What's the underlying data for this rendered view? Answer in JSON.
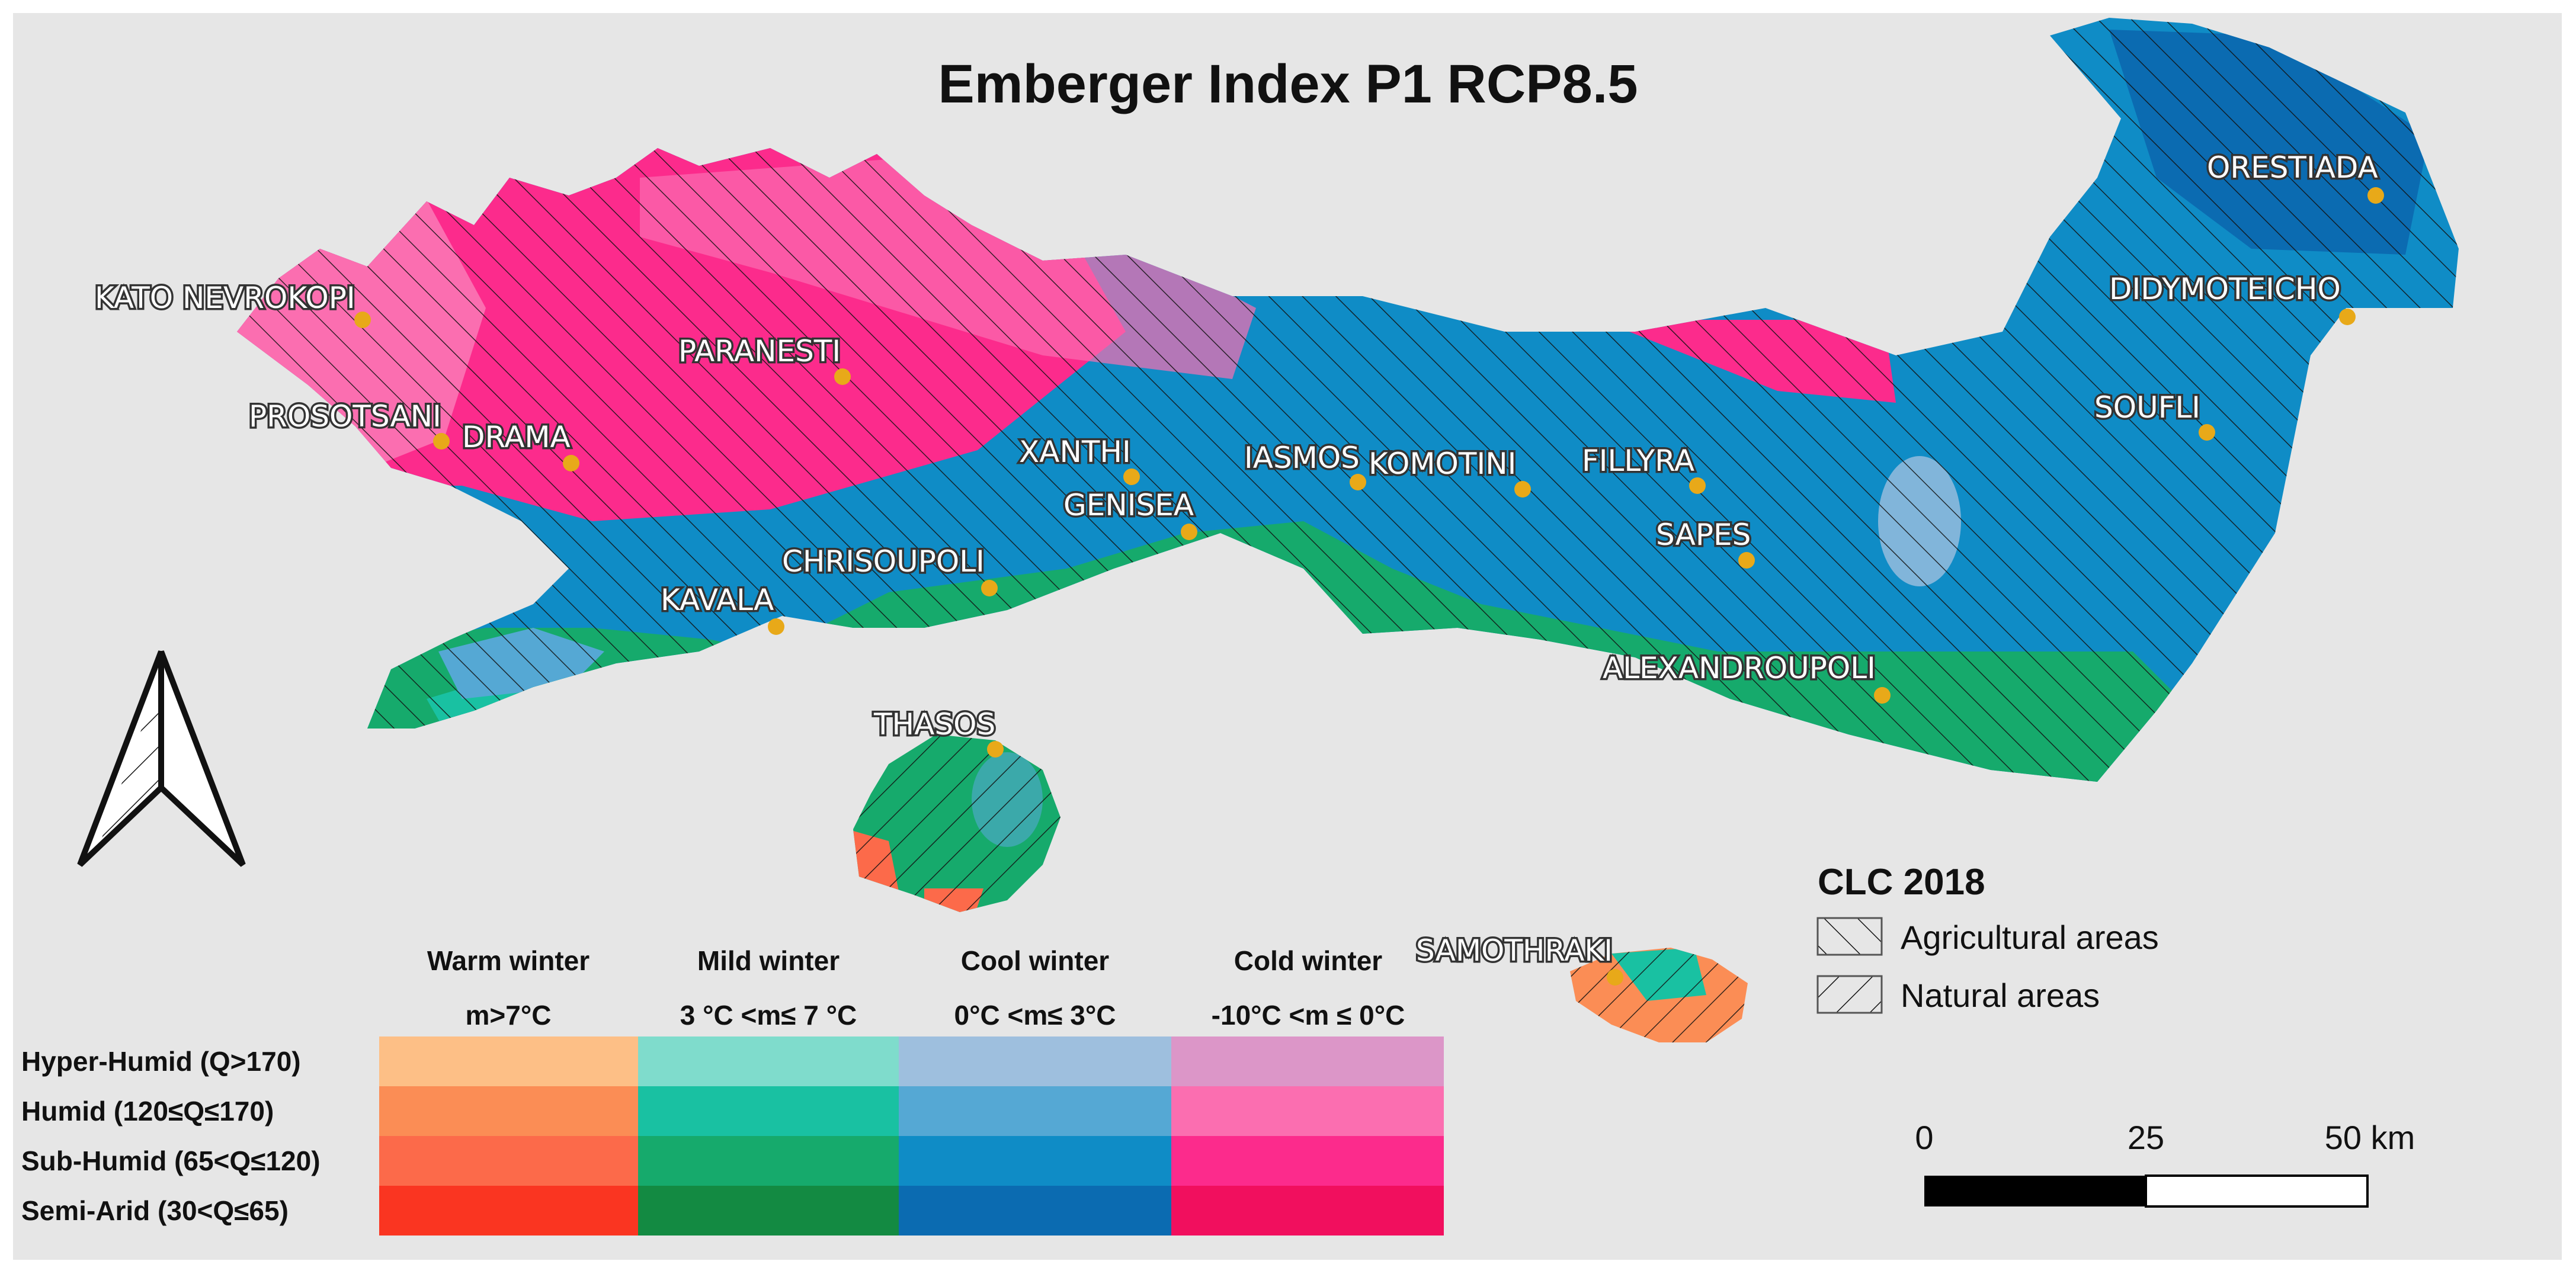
{
  "title": "Emberger Index P1 RCP8.5",
  "cities": [
    {
      "name": "KATO NEVROKOPI"
    },
    {
      "name": "PARANESTI"
    },
    {
      "name": "PROSOTSANI"
    },
    {
      "name": "DRAMA"
    },
    {
      "name": "XANTHI"
    },
    {
      "name": "IASMOS"
    },
    {
      "name": "KOMOTINI"
    },
    {
      "name": "FILLYRA"
    },
    {
      "name": "GENISEA"
    },
    {
      "name": "SAPES"
    },
    {
      "name": "CHRISOUPOLI"
    },
    {
      "name": "KAVALA"
    },
    {
      "name": "ALEXANDROUPOLI"
    },
    {
      "name": "THASOS"
    },
    {
      "name": "SAMOTHRAKI"
    },
    {
      "name": "ORESTIADA"
    },
    {
      "name": "DIDYMOTEICHO"
    },
    {
      "name": "SOUFLI"
    }
  ],
  "legend": {
    "columns": [
      {
        "name": "Warm winter",
        "range": "m>7°C"
      },
      {
        "name": "Mild winter",
        "range": "3 °C <m≤ 7 °C"
      },
      {
        "name": "Cool winter",
        "range": "0°C <m≤ 3°C"
      },
      {
        "name": "Cold winter",
        "range": "-10°C <m ≤ 0°C"
      }
    ],
    "rows": [
      "Hyper-Humid  (Q>170)",
      "Humid (120≤Q≤170)",
      "Sub-Humid (65<Q≤120)",
      "Semi-Arid (30<Q≤65)"
    ],
    "colors": [
      [
        "#fdbf86",
        "#7fdccc",
        "#9ebfde",
        "#dc96c8"
      ],
      [
        "#fb8d55",
        "#19c1a2",
        "#55a8d4",
        "#fb6eb0"
      ],
      [
        "#fc6a4a",
        "#16aa6c",
        "#0f8cc6",
        "#fc2b8c"
      ],
      [
        "#fa3521",
        "#138a42",
        "#0b6bb1",
        "#f10f5e"
      ]
    ]
  },
  "clc": {
    "title": "CLC 2018",
    "items": [
      "Agricultural areas",
      "Natural areas"
    ]
  },
  "scale_bar": {
    "labels": [
      "0",
      "25",
      "50 km"
    ]
  },
  "colors": {
    "background": "#e6e6e6",
    "city_marker": "#e8a919"
  }
}
